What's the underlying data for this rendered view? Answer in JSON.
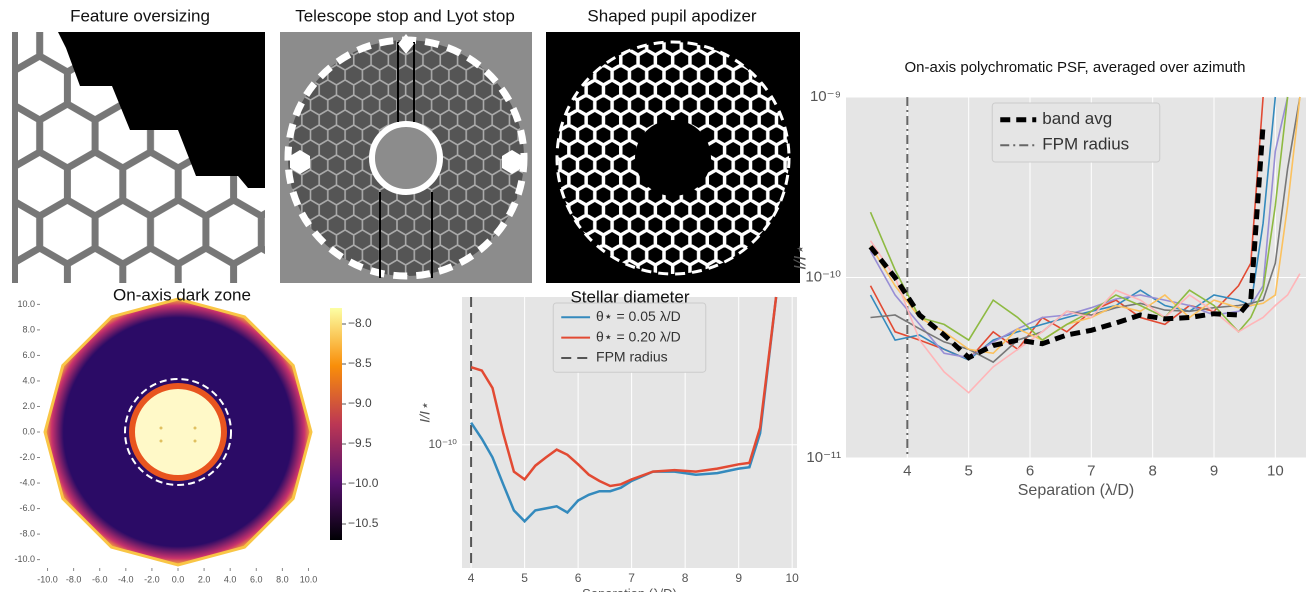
{
  "chart_data": [
    {
      "type": "image",
      "title": "Feature oversizing"
    },
    {
      "type": "image",
      "title": "Telescope stop and Lyot stop"
    },
    {
      "type": "image",
      "title": "Shaped pupil apodizer"
    },
    {
      "type": "heatmap",
      "title": "On-axis dark zone",
      "xlim": [
        -10.5,
        10.5
      ],
      "ylim": [
        -10.5,
        10.5
      ],
      "xticks": [
        {
          "value": -10,
          "label": "-10.0"
        },
        {
          "value": -8,
          "label": "-8.0"
        },
        {
          "value": -6,
          "label": "-6.0"
        },
        {
          "value": -4,
          "label": "-4.0"
        },
        {
          "value": -2,
          "label": "-2.0"
        },
        {
          "value": 0,
          "label": "0.0"
        },
        {
          "value": 2,
          "label": "2.0"
        },
        {
          "value": 4,
          "label": "4.0"
        },
        {
          "value": 6,
          "label": "6.0"
        },
        {
          "value": 8,
          "label": "8.0"
        },
        {
          "value": 10,
          "label": "10.0"
        }
      ],
      "yticks": [
        {
          "value": -10,
          "label": "-10.0"
        },
        {
          "value": -8,
          "label": "-8.0"
        },
        {
          "value": -6,
          "label": "-6.0"
        },
        {
          "value": -4,
          "label": "-4.0"
        },
        {
          "value": -2,
          "label": "-2.0"
        },
        {
          "value": 0,
          "label": "0.0"
        },
        {
          "value": 2,
          "label": "2.0"
        },
        {
          "value": 4,
          "label": "4.0"
        },
        {
          "value": 6,
          "label": "6.0"
        },
        {
          "value": 8,
          "label": "8.0"
        },
        {
          "value": 10,
          "label": "10.0"
        }
      ],
      "clim": [
        -10.7,
        -7.8
      ],
      "cticks": [
        {
          "value": -8,
          "label": "−8.0"
        },
        {
          "value": -8.5,
          "label": "−8.5"
        },
        {
          "value": -9,
          "label": "−9.0"
        },
        {
          "value": -9.5,
          "label": "−9.5"
        },
        {
          "value": -10,
          "label": "−10.0"
        },
        {
          "value": -10.5,
          "label": "−10.5"
        }
      ]
    },
    {
      "type": "line",
      "title": "Stellar diameter",
      "x_label": "Separation (λ/D)",
      "y_label": "I/I⋆",
      "log_y": true,
      "grid": true,
      "legend": "upper center",
      "xlim": [
        3.83,
        10.09
      ],
      "xticks": [
        4,
        5,
        6,
        7,
        8,
        9,
        10
      ],
      "ylim": [
        3.6e-11,
        3.4e-10
      ],
      "yticks": [
        {
          "value": 1e-10,
          "label": "10⁻¹⁰"
        }
      ],
      "x": [
        4.0,
        4.2,
        4.4,
        4.6,
        4.8,
        5.0,
        5.2,
        5.4,
        5.6,
        5.8,
        6.0,
        6.2,
        6.4,
        6.6,
        6.8,
        7.0,
        7.4,
        7.8,
        8.2,
        8.6,
        9.0,
        9.2,
        9.4,
        9.7
      ],
      "series": [
        {
          "name": "θ⋆ = 0.05 λ/D",
          "color": "#348abd",
          "values": [
            1.2e-10,
            1.05e-10,
            9e-11,
            7.2e-11,
            5.8e-11,
            5.3e-11,
            5.8e-11,
            5.9e-11,
            6e-11,
            5.7e-11,
            6.3e-11,
            6.6e-11,
            6.8e-11,
            6.8e-11,
            7e-11,
            7.4e-11,
            8e-11,
            8e-11,
            7.8e-11,
            7.9e-11,
            8.2e-11,
            8.3e-11,
            1.1e-10,
            3.4e-10
          ]
        },
        {
          "name": "θ⋆ = 0.20 λ/D",
          "color": "#e24a33",
          "values": [
            1.9e-10,
            1.85e-10,
            1.6e-10,
            1.1e-10,
            8e-11,
            7.5e-11,
            8.4e-11,
            9e-11,
            9.6e-11,
            9.2e-11,
            8.5e-11,
            7.8e-11,
            7.4e-11,
            7.1e-11,
            7.2e-11,
            7.5e-11,
            8e-11,
            8.1e-11,
            8e-11,
            8.2e-11,
            8.5e-11,
            8.6e-11,
            1.15e-10,
            3.4e-10
          ]
        }
      ],
      "vlines": [
        {
          "name": "FPM radius",
          "x": 4,
          "color": "#555555",
          "style": "dashed"
        }
      ]
    },
    {
      "type": "line",
      "title": "On-axis polychromatic PSF, averaged over azimuth",
      "x_label": "Separation (λ/D)",
      "y_label": "I/I⋆",
      "log_y": true,
      "grid": true,
      "legend": "upper center",
      "xlim": [
        3.0,
        10.5
      ],
      "xticks": [
        4,
        5,
        6,
        7,
        8,
        9,
        10
      ],
      "ylim": [
        1e-11,
        1e-09
      ],
      "yticks": [
        {
          "value": 1e-11,
          "label": "10⁻¹¹"
        },
        {
          "value": 1e-10,
          "label": "10⁻¹⁰"
        },
        {
          "value": 1e-09,
          "label": "10⁻⁹"
        }
      ],
      "x": [
        3.4,
        3.8,
        4.2,
        4.6,
        5.0,
        5.4,
        5.8,
        6.2,
        6.6,
        7.0,
        7.4,
        7.8,
        8.2,
        8.6,
        9.0,
        9.4,
        9.6,
        9.8,
        10.0,
        10.2,
        10.4
      ],
      "series": [
        {
          "color": "#e24a33",
          "values": [
            9e-11,
            5e-11,
            4.5e-11,
            4e-11,
            3.5e-11,
            5e-11,
            4e-11,
            6e-11,
            5e-11,
            6.5e-11,
            7.5e-11,
            6e-11,
            5.5e-11,
            7e-11,
            6.5e-11,
            9e-11,
            1.2e-10,
            1e-09,
            null,
            null,
            null
          ]
        },
        {
          "color": "#348abd",
          "values": [
            8e-11,
            4.5e-11,
            4.8e-11,
            4e-11,
            3.5e-11,
            4.5e-11,
            5e-11,
            5.5e-11,
            6e-11,
            6.5e-11,
            7e-11,
            8.5e-11,
            7e-11,
            6.5e-11,
            8e-11,
            7.5e-11,
            7e-11,
            2e-10,
            1e-09,
            null,
            null
          ]
        },
        {
          "color": "#988ed5",
          "values": [
            1.4e-10,
            8e-11,
            5.5e-11,
            3.8e-11,
            3.6e-11,
            4.4e-11,
            5.2e-11,
            6e-11,
            6.2e-11,
            6.8e-11,
            7.6e-11,
            8e-11,
            7.5e-11,
            7e-11,
            6.2e-11,
            6.5e-11,
            7e-11,
            9e-11,
            5e-10,
            1e-09,
            null
          ]
        },
        {
          "color": "#777777",
          "values": [
            6e-11,
            6.2e-11,
            5.2e-11,
            4.4e-11,
            4e-11,
            3.4e-11,
            4.5e-11,
            5e-11,
            6.5e-11,
            6.2e-11,
            6.8e-11,
            7.2e-11,
            6.6e-11,
            6.5e-11,
            6.8e-11,
            7e-11,
            7.2e-11,
            7.5e-11,
            1.2e-10,
            4e-10,
            1e-09
          ]
        },
        {
          "color": "#fbc15e",
          "values": [
            1.5e-10,
            9e-11,
            6e-11,
            5e-11,
            4e-11,
            3.8e-11,
            5.2e-11,
            4.5e-11,
            5.5e-11,
            6e-11,
            7e-11,
            6.5e-11,
            8e-11,
            6e-11,
            7.5e-11,
            6.8e-11,
            7e-11,
            7.2e-11,
            8e-11,
            2.5e-10,
            1e-09
          ]
        },
        {
          "color": "#8eba42",
          "values": [
            2.3e-10,
            1.1e-10,
            6e-11,
            5.5e-11,
            4.5e-11,
            7.5e-11,
            6e-11,
            4.5e-11,
            5.5e-11,
            6.5e-11,
            8e-11,
            7e-11,
            6e-11,
            8.5e-11,
            7e-11,
            5e-11,
            6e-11,
            8.5e-11,
            2.5e-10,
            1e-09,
            null
          ]
        },
        {
          "color": "#ffb5b8",
          "values": [
            1.6e-10,
            1e-10,
            4.5e-11,
            3e-11,
            2.3e-11,
            3.2e-11,
            4e-11,
            5e-11,
            6.5e-11,
            6e-11,
            8.5e-11,
            7.5e-11,
            6e-11,
            8e-11,
            6.5e-11,
            5e-11,
            5.5e-11,
            6e-11,
            7e-11,
            8e-11,
            1.05e-10
          ]
        },
        {
          "name": "band avg",
          "color": "#000000",
          "style": "dashed",
          "width": 5,
          "values": [
            1.48e-10,
            1e-10,
            6.2e-11,
            4.8e-11,
            3.6e-11,
            4.2e-11,
            4.5e-11,
            4.3e-11,
            4.8e-11,
            5.1e-11,
            5.6e-11,
            6.2e-11,
            5.9e-11,
            6e-11,
            6.3e-11,
            6.2e-11,
            7.5e-11,
            7e-10,
            null,
            null,
            null
          ]
        }
      ],
      "vlines": [
        {
          "name": "FPM radius",
          "x": 4,
          "color": "#666666",
          "style": "dashdot"
        }
      ]
    }
  ]
}
